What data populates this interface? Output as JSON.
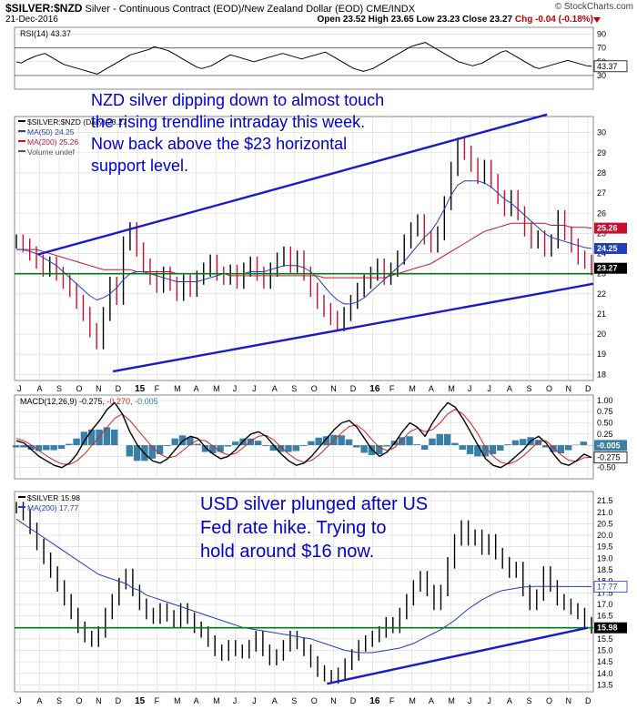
{
  "header": {
    "symbol": "$SILVER:$NZD",
    "description": "Silver - Continuous Contract (EOD)/New Zealand Dollar (EOD)",
    "exchange": "CME/INDX",
    "date": "21-Dec-2016",
    "brand": "© StockCharts.com",
    "ohlc_text": "Open 23.52  High 23.65  Low 23.23  Close 23.27",
    "chg_text": "Chg -0.04 (-0.18%)"
  },
  "colors": {
    "price": "#000000",
    "up_bar": "#000000",
    "down_bar": "#c8102e",
    "ma50": "#1f3fbf",
    "ma200": "#c8102e",
    "trendline": "#1a1acc",
    "support": "#007a1a",
    "annotation": "#0000cc",
    "grid": "#d8d8d8",
    "macd_hist": "#3a7fa8",
    "macd_signal": "#d62020"
  },
  "chart_data": [
    {
      "type": "line",
      "panel": "rsi",
      "label": "RSI(14) 43.37",
      "ylim": [
        10,
        100
      ],
      "yticks": [
        30,
        50,
        70,
        90
      ],
      "last_label": "43.37",
      "reference_lines": [
        30,
        70
      ],
      "values": [
        50,
        48,
        52,
        55,
        58,
        60,
        62,
        58,
        54,
        50,
        46,
        44,
        42,
        40,
        38,
        36,
        34,
        32,
        36,
        40,
        44,
        48,
        52,
        56,
        60,
        62,
        64,
        66,
        68,
        72,
        70,
        68,
        66,
        62,
        58,
        54,
        50,
        46,
        42,
        40,
        42,
        44,
        48,
        52,
        56,
        60,
        58,
        56,
        54,
        52,
        50,
        52,
        54,
        56,
        58,
        60,
        62,
        60,
        58,
        56,
        54,
        56,
        58,
        60,
        62,
        64,
        60,
        56,
        52,
        48,
        44,
        40,
        38,
        36,
        38,
        40,
        44,
        48,
        52,
        56,
        60,
        64,
        68,
        72,
        74,
        76,
        78,
        74,
        70,
        66,
        62,
        58,
        54,
        50,
        48,
        46,
        44,
        46,
        48,
        52,
        56,
        60,
        64,
        66,
        62,
        58,
        54,
        50,
        46,
        42,
        40,
        42,
        44,
        46,
        48,
        50,
        52,
        50,
        48,
        46,
        44,
        43.37
      ]
    },
    {
      "type": "line",
      "panel": "price_nzd",
      "legend": [
        "$SILVER:$NZD (Daily) 23.27",
        "MA(50) 24.25",
        "MA(200) 25.26",
        "Volume undef"
      ],
      "ylim": [
        17.7,
        30.8
      ],
      "yticks": [
        18,
        19,
        20,
        21,
        22,
        23,
        24,
        25,
        26,
        27,
        28,
        29,
        30
      ],
      "x_axis_labels": [
        "J",
        "A",
        "S",
        "O",
        "N",
        "D",
        "15",
        "F",
        "M",
        "A",
        "M",
        "J",
        "J",
        "A",
        "S",
        "O",
        "N",
        "D",
        "16",
        "F",
        "M",
        "A",
        "M",
        "J",
        "J",
        "A",
        "S",
        "O",
        "N",
        "D"
      ],
      "price_labels": [
        {
          "value": 25.26,
          "text": "25.26"
        },
        {
          "value": 24.25,
          "text": "24.25"
        },
        {
          "value": 23.27,
          "text": "23.27"
        }
      ],
      "close": [
        24.6,
        24.4,
        24.0,
        23.6,
        23.2,
        23.5,
        23.0,
        22.6,
        22.2,
        21.6,
        21.0,
        20.2,
        19.6,
        21.0,
        22.5,
        21.8,
        24.5,
        25.2,
        24.2,
        23.4,
        22.8,
        22.4,
        23.0,
        22.5,
        22.0,
        22.6,
        22.2,
        22.8,
        23.2,
        23.6,
        23.0,
        22.8,
        23.1,
        22.6,
        23.2,
        23.5,
        23.0,
        22.6,
        23.2,
        23.7,
        24.0,
        23.4,
        23.8,
        23.0,
        22.2,
        21.6,
        21.2,
        20.8,
        20.5,
        21.0,
        21.6,
        22.2,
        22.6,
        23.0,
        23.4,
        22.8,
        23.2,
        23.8,
        24.6,
        25.2,
        25.6,
        24.8,
        24.4,
        25.0,
        26.5,
        28.2,
        29.4,
        29.0,
        28.4,
        27.8,
        28.3,
        27.6,
        26.8,
        26.2,
        26.8,
        26.0,
        25.2,
        24.6,
        24.8,
        24.2,
        24.6,
        25.8,
        25.0,
        24.4,
        23.8,
        23.6,
        23.27
      ],
      "ma50": [
        24.2,
        24.2,
        24.1,
        24.0,
        23.8,
        23.6,
        23.4,
        23.1,
        22.8,
        22.5,
        22.2,
        21.9,
        21.7,
        21.8,
        22.0,
        22.3,
        22.7,
        23.0,
        23.1,
        23.1,
        23.0,
        22.9,
        22.8,
        22.7,
        22.6,
        22.6,
        22.6,
        22.6,
        22.7,
        22.8,
        22.9,
        23.0,
        23.0,
        23.0,
        23.0,
        23.1,
        23.1,
        23.1,
        23.2,
        23.3,
        23.4,
        23.4,
        23.4,
        23.3,
        23.1,
        22.8,
        22.4,
        22.0,
        21.7,
        21.5,
        21.5,
        21.6,
        21.8,
        22.1,
        22.4,
        22.7,
        23.0,
        23.3,
        23.6,
        24.0,
        24.4,
        24.8,
        25.1,
        25.6,
        26.2,
        26.9,
        27.4,
        27.6,
        27.6,
        27.6,
        27.5,
        27.3,
        27.0,
        26.7,
        26.5,
        26.2,
        25.9,
        25.6,
        25.3,
        25.0,
        24.8,
        24.7,
        24.6,
        24.5,
        24.4,
        24.3,
        24.25
      ],
      "ma200": [
        24.2,
        24.2,
        24.2,
        24.2,
        24.1,
        24.0,
        23.9,
        23.8,
        23.7,
        23.6,
        23.5,
        23.4,
        23.3,
        23.2,
        23.2,
        23.2,
        23.2,
        23.2,
        23.1,
        23.1,
        23.1,
        23.1,
        23.1,
        23.1,
        23.0,
        23.0,
        23.0,
        23.0,
        23.0,
        23.0,
        23.0,
        23.0,
        22.9,
        22.9,
        22.9,
        22.9,
        22.9,
        22.9,
        22.9,
        22.9,
        22.9,
        22.9,
        22.9,
        22.9,
        22.9,
        22.9,
        22.8,
        22.8,
        22.8,
        22.8,
        22.8,
        22.8,
        22.8,
        22.8,
        22.8,
        22.8,
        22.9,
        23.0,
        23.1,
        23.2,
        23.3,
        23.4,
        23.5,
        23.7,
        23.9,
        24.1,
        24.3,
        24.5,
        24.7,
        24.9,
        25.1,
        25.2,
        25.3,
        25.4,
        25.5,
        25.5,
        25.5,
        25.5,
        25.5,
        25.5,
        25.4,
        25.4,
        25.4,
        25.3,
        25.3,
        25.3,
        25.26
      ],
      "support_level": 23.0,
      "trendlines": [
        {
          "from": [
            0.04,
            23.95
          ],
          "to": [
            0.92,
            30.9
          ]
        },
        {
          "from": [
            0.17,
            18.15
          ],
          "to": [
            1.0,
            22.5
          ]
        }
      ],
      "annotation": "NZD silver dipping down to almost touch the rising trendline intraday this week. Now back above the $23 horizontal support level."
    },
    {
      "type": "line",
      "panel": "macd",
      "label_main": "MACD(12,26,9) -0.275,",
      "label_signal": " -0.270,",
      "label_hist": " -0.005",
      "ylim": [
        -0.75,
        1.12
      ],
      "yticks": [
        -0.5,
        -0.25,
        0,
        0.25,
        0.5,
        0.75,
        1.0
      ],
      "ytick_labels": [
        "-0.50",
        "-0.25",
        "0",
        "0.25",
        "0.50",
        "0.75",
        "1.00"
      ],
      "price_labels": [
        {
          "value": -0.005,
          "text": "-0.005"
        },
        {
          "value": -0.275,
          "text": "-0.275"
        }
      ],
      "macd": [
        0.1,
        0.05,
        -0.1,
        -0.25,
        -0.35,
        -0.45,
        -0.5,
        -0.4,
        -0.2,
        0.1,
        0.35,
        0.55,
        0.8,
        0.95,
        0.7,
        0.3,
        0.0,
        -0.2,
        -0.35,
        -0.4,
        -0.3,
        -0.1,
        0.1,
        0.2,
        0.15,
        -0.05,
        -0.2,
        -0.3,
        -0.25,
        -0.1,
        0.1,
        0.25,
        0.3,
        0.2,
        0.0,
        -0.2,
        -0.35,
        -0.45,
        -0.4,
        -0.25,
        -0.05,
        0.15,
        0.35,
        0.5,
        0.55,
        0.4,
        0.15,
        -0.1,
        -0.25,
        -0.15,
        0.05,
        0.3,
        0.5,
        0.4,
        0.2,
        0.5,
        0.75,
        0.95,
        0.85,
        0.6,
        0.3,
        0.0,
        -0.3,
        -0.45,
        -0.5,
        -0.4,
        -0.25,
        -0.1,
        0.1,
        0.2,
        0.05,
        -0.2,
        -0.4,
        -0.45,
        -0.35,
        -0.2,
        -0.275
      ],
      "signal": [
        0.15,
        0.1,
        0.0,
        -0.12,
        -0.24,
        -0.34,
        -0.42,
        -0.43,
        -0.35,
        -0.2,
        0.0,
        0.2,
        0.4,
        0.6,
        0.7,
        0.55,
        0.35,
        0.15,
        -0.05,
        -0.2,
        -0.28,
        -0.25,
        -0.12,
        0.02,
        0.12,
        0.1,
        -0.02,
        -0.15,
        -0.22,
        -0.18,
        -0.05,
        0.1,
        0.2,
        0.22,
        0.12,
        -0.05,
        -0.2,
        -0.32,
        -0.38,
        -0.34,
        -0.22,
        -0.05,
        0.12,
        0.28,
        0.42,
        0.45,
        0.32,
        0.12,
        -0.05,
        -0.12,
        -0.05,
        0.12,
        0.3,
        0.38,
        0.3,
        0.35,
        0.5,
        0.7,
        0.8,
        0.7,
        0.5,
        0.25,
        -0.05,
        -0.25,
        -0.38,
        -0.42,
        -0.36,
        -0.24,
        -0.08,
        0.08,
        0.1,
        -0.05,
        -0.22,
        -0.34,
        -0.36,
        -0.28,
        -0.27
      ]
    },
    {
      "type": "line",
      "panel": "price_usd",
      "legend": [
        "$SILVER 15.98",
        "MA(200) 17.77"
      ],
      "ylim": [
        13.2,
        21.9
      ],
      "yticks": [
        13.5,
        14.0,
        14.5,
        15.0,
        15.5,
        16.0,
        16.5,
        17.0,
        17.5,
        18.0,
        18.5,
        19.0,
        19.5,
        20.0,
        20.5,
        21.0,
        21.5
      ],
      "ytick_labels": [
        "13.5",
        "14.0",
        "14.5",
        "15.0",
        "15.5",
        "16.0",
        "16.5",
        "17.0",
        "17.5",
        "18.0",
        "18.5",
        "19.0",
        "19.5",
        "20.0",
        "20.5",
        "21.0",
        "21.5"
      ],
      "x_axis_labels": [
        "J",
        "A",
        "S",
        "O",
        "N",
        "D",
        "15",
        "F",
        "M",
        "A",
        "M",
        "J",
        "J",
        "A",
        "S",
        "O",
        "N",
        "D",
        "16",
        "F",
        "M",
        "A",
        "M",
        "J",
        "J",
        "A",
        "S",
        "O",
        "N",
        "D"
      ],
      "price_labels": [
        {
          "value": 17.77,
          "text": "17.77"
        },
        {
          "value": 15.98,
          "text": "15.98"
        }
      ],
      "close": [
        21.2,
        20.9,
        20.3,
        19.6,
        19.0,
        18.4,
        17.8,
        17.2,
        16.6,
        16.0,
        15.6,
        15.4,
        15.8,
        16.6,
        17.2,
        17.9,
        18.3,
        17.6,
        17.0,
        16.6,
        16.4,
        16.8,
        16.5,
        16.2,
        16.8,
        16.4,
        16.0,
        15.8,
        15.4,
        15.0,
        14.8,
        15.2,
        15.0,
        14.9,
        15.2,
        15.6,
        15.0,
        14.6,
        14.8,
        15.2,
        15.6,
        15.3,
        15.0,
        14.5,
        14.1,
        13.9,
        13.8,
        14.0,
        14.4,
        14.8,
        15.2,
        15.4,
        15.6,
        15.8,
        16.2,
        16.0,
        16.6,
        17.2,
        17.8,
        18.2,
        17.6,
        17.0,
        17.6,
        18.8,
        19.8,
        20.4,
        19.8,
        20.0,
        19.4,
        19.8,
        19.2,
        18.8,
        18.4,
        18.6,
        17.6,
        17.0,
        17.4,
        18.4,
        17.8,
        17.2,
        17.0,
        16.8,
        16.6,
        16.2,
        15.98
      ],
      "ma200": [
        20.7,
        20.5,
        20.3,
        20.1,
        19.9,
        19.7,
        19.5,
        19.3,
        19.1,
        18.9,
        18.7,
        18.5,
        18.3,
        18.2,
        18.1,
        18.0,
        17.9,
        17.7,
        17.6,
        17.4,
        17.3,
        17.2,
        17.1,
        17.0,
        16.9,
        16.8,
        16.7,
        16.6,
        16.5,
        16.4,
        16.3,
        16.2,
        16.1,
        16.0,
        15.95,
        15.9,
        15.85,
        15.8,
        15.75,
        15.7,
        15.65,
        15.6,
        15.55,
        15.5,
        15.4,
        15.3,
        15.2,
        15.1,
        15.0,
        14.95,
        14.9,
        14.9,
        14.9,
        14.95,
        15.0,
        15.05,
        15.1,
        15.2,
        15.3,
        15.45,
        15.6,
        15.75,
        15.9,
        16.1,
        16.3,
        16.55,
        16.8,
        17.0,
        17.2,
        17.35,
        17.5,
        17.6,
        17.65,
        17.7,
        17.75,
        17.77,
        17.78,
        17.78,
        17.78,
        17.78,
        17.77,
        17.77,
        17.77,
        17.77,
        17.77
      ],
      "support_level": 15.98,
      "trendlines": [
        {
          "from": [
            0.54,
            13.55
          ],
          "to": [
            0.99,
            15.98
          ]
        }
      ],
      "annotation": "USD silver plunged after US Fed rate hike. Trying to hold around $16 now."
    }
  ]
}
